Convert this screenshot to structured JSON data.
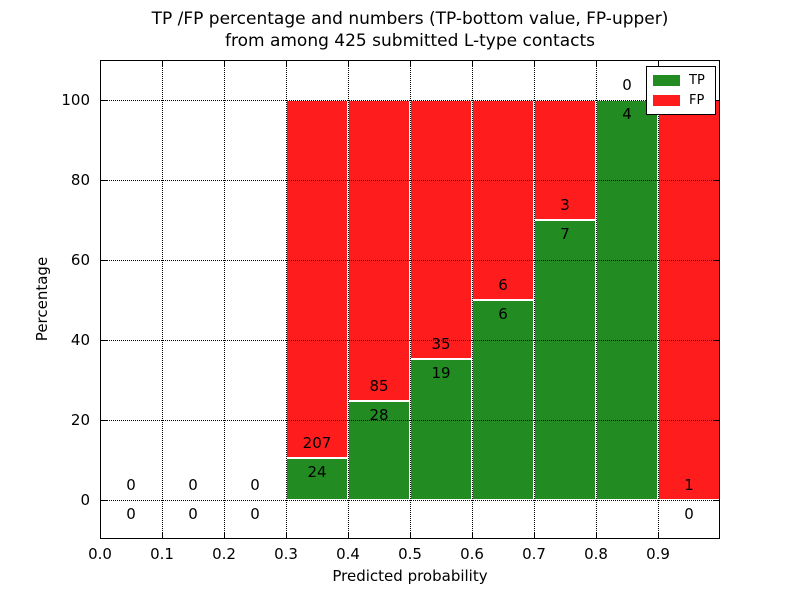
{
  "figure": {
    "title_line1": "TP /FP percentage and numbers (TP-bottom value, FP-upper)",
    "title_line2": "from among 425 submitted L-type contacts",
    "xlabel": "Predicted probability",
    "ylabel": "Percentage",
    "background": "#ffffff"
  },
  "colors": {
    "tp": "#228B22",
    "fp": "#FF1C1C",
    "grid": "#000000",
    "text": "#000000",
    "bar_edge": "#ffffff"
  },
  "legend": {
    "position": "upper right",
    "items": [
      {
        "label": "TP",
        "color_key": "tp"
      },
      {
        "label": "FP",
        "color_key": "fp"
      }
    ]
  },
  "chart_data": {
    "type": "bar",
    "stacked": true,
    "normalized_to_percent": true,
    "title": "TP /FP percentage and numbers (TP-bottom value, FP-upper) from among 425 submitted L-type contacts",
    "xlabel": "Predicted probability",
    "ylabel": "Percentage",
    "xlim": [
      0.0,
      1.0
    ],
    "ylim": [
      -10,
      110
    ],
    "grid": true,
    "legend_position": "upper right",
    "bin_width": 0.1,
    "bin_edges": [
      0.0,
      0.1,
      0.2,
      0.3,
      0.4,
      0.5,
      0.6,
      0.7,
      0.8,
      0.9,
      1.0
    ],
    "categories": [
      "0.0-0.1",
      "0.1-0.2",
      "0.2-0.3",
      "0.3-0.4",
      "0.4-0.5",
      "0.5-0.6",
      "0.6-0.7",
      "0.7-0.8",
      "0.8-0.9",
      "0.9-1.0"
    ],
    "xtick_labels": [
      "0.0",
      "0.1",
      "0.2",
      "0.3",
      "0.4",
      "0.5",
      "0.6",
      "0.7",
      "0.8",
      "0.9"
    ],
    "ytick_labels": [
      "0",
      "20",
      "40",
      "60",
      "80",
      "100"
    ],
    "ytick_values": [
      0,
      20,
      40,
      60,
      80,
      100
    ],
    "series": [
      {
        "name": "TP",
        "color": "#228B22",
        "counts": [
          0,
          0,
          0,
          24,
          28,
          19,
          6,
          7,
          4,
          0
        ]
      },
      {
        "name": "FP",
        "color": "#FF1C1C",
        "counts": [
          0,
          0,
          0,
          207,
          85,
          35,
          6,
          3,
          0,
          1
        ]
      }
    ],
    "tp_percent_by_bin": [
      0,
      0,
      0,
      10.39,
      24.78,
      35.19,
      50.0,
      70.0,
      100.0,
      0
    ],
    "total_contacts": 425
  }
}
